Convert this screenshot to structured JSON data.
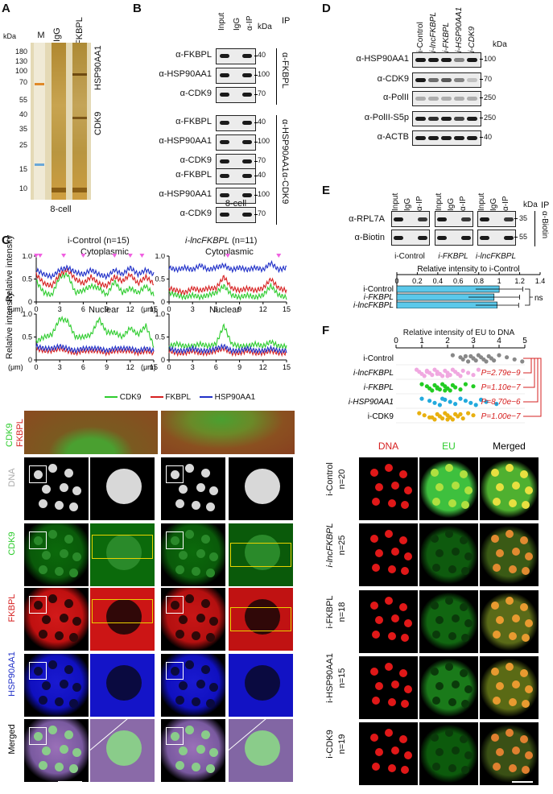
{
  "panels": {
    "A": "A",
    "B": "B",
    "C": "C",
    "D": "D",
    "E": "E",
    "F": "F"
  },
  "panelA": {
    "kda": "kDa",
    "lanes": [
      "M",
      "IgG",
      "α-FKBPL"
    ],
    "markers": [
      "180",
      "130",
      "100",
      "70",
      "55",
      "40",
      "35",
      "25",
      "15",
      "10"
    ],
    "band_labels": [
      "HSP90AA1",
      "CDK9"
    ],
    "caption": "8-cell"
  },
  "panelB": {
    "columns": [
      "Input",
      "IgG",
      "α-IP"
    ],
    "ip": "IP",
    "kda": "kDa",
    "groups": [
      {
        "ip": "α-FKBPL",
        "rows": [
          {
            "label": "α-FKBPL",
            "kda": "40"
          },
          {
            "label": "α-HSP90AA1",
            "kda": "100"
          },
          {
            "label": "α-CDK9",
            "kda": "70"
          }
        ]
      },
      {
        "ip": "α-HSP90AA1",
        "rows": [
          {
            "label": "α-FKBPL",
            "kda": "40"
          },
          {
            "label": "α-HSP90AA1",
            "kda": "100"
          },
          {
            "label": "α-CDK9",
            "kda": "70"
          }
        ]
      },
      {
        "ip": "α-CDK9",
        "rows": [
          {
            "label": "α-FKBPL",
            "kda": "40"
          },
          {
            "label": "α-HSP90AA1",
            "kda": "100"
          },
          {
            "label": "α-CDK9",
            "kda": "70"
          }
        ]
      }
    ],
    "caption": "8-cell"
  },
  "panelD": {
    "columns": [
      "i-Control",
      "i-lncFKBPL",
      "i-FKBPL",
      "i-HSP90AA1",
      "i-CDK9"
    ],
    "kda": "kDa",
    "rows": [
      {
        "label": "α-HSP90AA1",
        "kda": "100"
      },
      {
        "label": "α-CDK9",
        "kda": "70"
      },
      {
        "label": "α-PolII",
        "kda": "250"
      },
      {
        "label": "α-PolII-S5p",
        "kda": "250"
      },
      {
        "label": "α-ACTB",
        "kda": "40"
      }
    ]
  },
  "panelE": {
    "columns": [
      "Input",
      "IgG",
      "α-IP"
    ],
    "kda": "kDa",
    "ip": "IP",
    "ip_antibody": "α-Biotin",
    "rows": [
      {
        "label": "α-RPL7A",
        "kda": "35"
      },
      {
        "label": "α-Biotin",
        "kda": "55"
      }
    ],
    "groups": [
      "i-Control",
      "i-FKBPL",
      "i-lncFKBPL"
    ],
    "chart_title": "Relative intensity to i-Control",
    "ns": "ns"
  },
  "panelC": {
    "plots": [
      {
        "title": "i-Control",
        "n": "(n=15)",
        "sub": "Cytoplasmic"
      },
      {
        "title": "i-lncFKBPL",
        "n": "(n=11)",
        "sub": "Cytoplasmic"
      },
      {
        "sub": "Nuclear"
      },
      {
        "sub": "Nuclear"
      }
    ],
    "ylabel": "Relative intensity",
    "xunit": "(μm)",
    "legend": [
      "CDK9",
      "FKBPL",
      "HSP90AA1"
    ],
    "row_labels": [
      "CDK9",
      "FKBPL",
      "DNA",
      "CDK9",
      "FKBPL",
      "HSP90AA1",
      "Merged"
    ]
  },
  "panelF": {
    "chart_title": "Relative intensity of EU to DNA",
    "pvalues": [
      "P=2.79e−9",
      "P=1.10e−7",
      "P=8.70e−6",
      "P=1.00e−7"
    ],
    "col_labels": [
      "DNA",
      "EU",
      "Merged"
    ],
    "rows": [
      {
        "label": "i-Control",
        "n": "n=20"
      },
      {
        "label": "i-lncFKBPL",
        "n": "n=25"
      },
      {
        "label": "i-FKBPL",
        "n": "n=18"
      },
      {
        "label": "i-HSP90AA1",
        "n": "n=15"
      },
      {
        "label": "i-CDK9",
        "n": "n=19"
      }
    ]
  },
  "colors": {
    "cdk9": "#2ecc2e",
    "fkbpl": "#d62020",
    "hsp90": "#2030c8",
    "eu_bar": "#5bc8ea",
    "pval": "#d62020",
    "marker_tri": "#f060e0"
  },
  "chart_data": [
    {
      "type": "bar",
      "orientation": "horizontal",
      "title": "Relative intensity to i-Control",
      "categories": [
        "i-Control",
        "i-FKBPL",
        "i-lncFKBPL"
      ],
      "values": [
        1.0,
        0.95,
        0.98
      ],
      "errors": [
        0.23,
        0.25,
        0.21
      ],
      "xlim": [
        0,
        1.4
      ],
      "xticks": [
        "0",
        "0.2",
        "0.4",
        "0.6",
        "0.8",
        "1",
        "1.2",
        "1.4"
      ]
    },
    {
      "type": "scatter",
      "title": "Relative intensity of EU to DNA",
      "categories": [
        "i-Control",
        "i-lncFKBPL",
        "i-FKBPL",
        "i-HSP90AA1",
        "i-CDK9"
      ],
      "xlim": [
        0,
        5
      ],
      "xticks": [
        "0",
        "1",
        "2",
        "3",
        "4",
        "5"
      ],
      "series": [
        {
          "values": [
            2.2,
            2.5,
            2.6,
            2.8,
            2.9,
            3.0,
            3.1,
            3.2,
            3.3,
            3.4,
            3.5,
            3.6,
            3.7,
            3.8,
            4.0,
            4.3,
            4.6,
            4.9,
            2.7,
            3.0
          ],
          "color": "#888888"
        },
        {
          "values": [
            0.8,
            0.9,
            1.0,
            1.1,
            1.2,
            1.3,
            1.4,
            1.5,
            1.6,
            1.7,
            1.8,
            1.9,
            2.0,
            2.1,
            2.2,
            2.3,
            2.4,
            2.5,
            2.6,
            2.8,
            3.0,
            3.2,
            1.2,
            1.6,
            2.0
          ],
          "color": "#f0a8e0"
        },
        {
          "values": [
            1.0,
            1.2,
            1.3,
            1.4,
            1.5,
            1.6,
            1.7,
            1.8,
            1.9,
            2.0,
            2.1,
            2.2,
            2.3,
            2.5,
            2.7,
            3.0,
            1.6,
            1.9
          ],
          "color": "#22cc22"
        },
        {
          "values": [
            1.0,
            1.3,
            1.5,
            1.7,
            1.9,
            2.1,
            2.3,
            2.5,
            2.7,
            2.9,
            3.1,
            3.3,
            3.5,
            3.9,
            1.8
          ],
          "color": "#22aadd"
        },
        {
          "values": [
            0.9,
            1.1,
            1.3,
            1.5,
            1.6,
            1.7,
            1.8,
            1.9,
            2.0,
            2.1,
            2.2,
            2.3,
            2.4,
            2.6,
            2.8,
            3.0,
            1.4,
            2.0,
            2.5
          ],
          "color": "#e8b010"
        }
      ]
    },
    {
      "type": "line",
      "title": "i-Control Cytoplasmic",
      "x": [
        0,
        1,
        2,
        3,
        4,
        5,
        6,
        7,
        8,
        9,
        10,
        11,
        12,
        13,
        14,
        15
      ],
      "ylim": [
        0,
        1.0
      ],
      "series": [
        {
          "name": "CDK9",
          "values": [
            0.45,
            0.2,
            0.15,
            0.55,
            0.6,
            0.2,
            0.25,
            0.35,
            0.3,
            0.15,
            0.45,
            0.2,
            0.3,
            0.2,
            0.35,
            0.15
          ]
        },
        {
          "name": "FKBPL",
          "values": [
            0.6,
            0.4,
            0.35,
            0.6,
            0.7,
            0.5,
            0.4,
            0.55,
            0.4,
            0.35,
            0.55,
            0.45,
            0.6,
            0.4,
            0.55,
            0.4
          ]
        },
        {
          "name": "HSP90AA1",
          "values": [
            0.7,
            0.6,
            0.55,
            0.7,
            0.75,
            0.65,
            0.6,
            0.7,
            0.6,
            0.55,
            0.7,
            0.6,
            0.75,
            0.6,
            0.7,
            0.6
          ]
        }
      ]
    },
    {
      "type": "line",
      "title": "i-lncFKBPL Cytoplasmic",
      "x": [
        0,
        1,
        2,
        3,
        4,
        5,
        6,
        7,
        8,
        9,
        10,
        11,
        12,
        13,
        14,
        15
      ],
      "ylim": [
        0,
        1.0
      ],
      "series": [
        {
          "name": "CDK9",
          "values": [
            0.2,
            0.15,
            0.1,
            0.15,
            0.1,
            0.15,
            0.2,
            0.35,
            0.15,
            0.1,
            0.15,
            0.1,
            0.15,
            0.35,
            0.15,
            0.1
          ]
        },
        {
          "name": "FKBPL",
          "values": [
            0.3,
            0.25,
            0.2,
            0.3,
            0.25,
            0.3,
            0.3,
            0.55,
            0.3,
            0.25,
            0.3,
            0.25,
            0.3,
            0.5,
            0.3,
            0.25
          ]
        },
        {
          "name": "HSP90AA1",
          "values": [
            0.75,
            0.7,
            0.75,
            0.7,
            0.8,
            0.7,
            0.75,
            0.8,
            0.7,
            0.75,
            0.7,
            0.75,
            0.7,
            0.85,
            0.7,
            0.75
          ]
        }
      ]
    },
    {
      "type": "line",
      "title": "i-Control Nuclear",
      "x": [
        0,
        1,
        2,
        3,
        4,
        5,
        6,
        7,
        8,
        9,
        10,
        11,
        12,
        13,
        14,
        15
      ],
      "ylim": [
        0,
        1.0
      ],
      "series": [
        {
          "name": "CDK9",
          "values": [
            0.4,
            0.5,
            0.55,
            0.9,
            0.85,
            0.5,
            0.5,
            0.55,
            0.9,
            0.6,
            0.6,
            0.5,
            0.7,
            0.55,
            0.75,
            0.3
          ]
        },
        {
          "name": "FKBPL",
          "values": [
            0.25,
            0.2,
            0.2,
            0.25,
            0.2,
            0.15,
            0.2,
            0.2,
            0.2,
            0.15,
            0.2,
            0.2,
            0.2,
            0.15,
            0.2,
            0.15
          ]
        },
        {
          "name": "HSP90AA1",
          "values": [
            0.3,
            0.25,
            0.25,
            0.3,
            0.25,
            0.2,
            0.25,
            0.25,
            0.25,
            0.2,
            0.25,
            0.25,
            0.25,
            0.2,
            0.25,
            0.2
          ]
        }
      ]
    },
    {
      "type": "line",
      "title": "i-lncFKBPL Nuclear",
      "x": [
        0,
        1,
        2,
        3,
        4,
        5,
        6,
        7,
        8,
        9,
        10,
        11,
        12,
        13,
        14,
        15
      ],
      "ylim": [
        0,
        1.0
      ],
      "series": [
        {
          "name": "CDK9",
          "values": [
            0.3,
            0.35,
            0.3,
            0.3,
            0.35,
            0.3,
            0.35,
            0.75,
            0.35,
            0.3,
            0.3,
            0.35,
            0.3,
            0.4,
            0.3,
            0.3
          ]
        },
        {
          "name": "FKBPL",
          "values": [
            0.2,
            0.15,
            0.15,
            0.2,
            0.15,
            0.15,
            0.2,
            0.25,
            0.15,
            0.15,
            0.2,
            0.15,
            0.15,
            0.2,
            0.15,
            0.15
          ]
        },
        {
          "name": "HSP90AA1",
          "values": [
            0.25,
            0.2,
            0.2,
            0.25,
            0.2,
            0.2,
            0.25,
            0.3,
            0.2,
            0.2,
            0.25,
            0.2,
            0.2,
            0.25,
            0.2,
            0.2
          ]
        }
      ]
    }
  ]
}
